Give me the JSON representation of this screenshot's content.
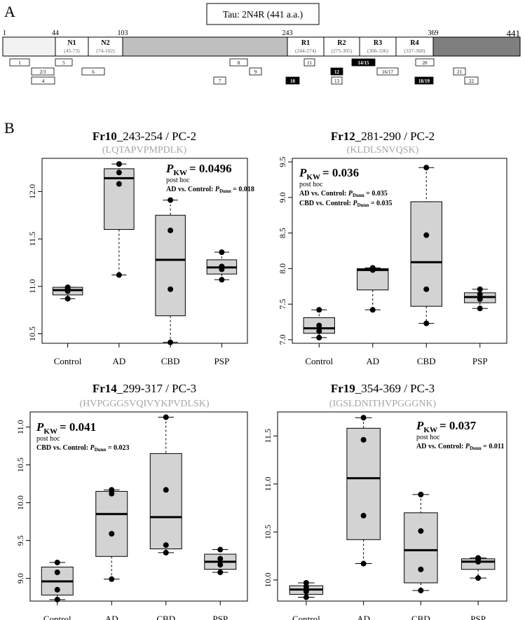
{
  "figure": {
    "panel_a_letter": "A",
    "panel_b_letter": "B"
  },
  "tau_map": {
    "title": "Tau: 2N4R (441 a.a.)",
    "boundary_labels": [
      "1",
      "44",
      "103",
      "243",
      "369",
      "441"
    ],
    "domains": [
      {
        "name": "N1",
        "range": "(45-73)"
      },
      {
        "name": "N2",
        "range": "(74-102)"
      },
      {
        "name": "R1",
        "range": "(244-274)"
      },
      {
        "name": "R2",
        "range": "(275-305)"
      },
      {
        "name": "R3",
        "range": "(306-336)"
      },
      {
        "name": "R4",
        "range": "(337-368)"
      }
    ],
    "fragments": [
      {
        "label": "1",
        "highlight": false
      },
      {
        "label": "2/3",
        "highlight": false
      },
      {
        "label": "4",
        "highlight": false
      },
      {
        "label": "5",
        "highlight": false
      },
      {
        "label": "6",
        "highlight": false
      },
      {
        "label": "7",
        "highlight": false
      },
      {
        "label": "8",
        "highlight": false
      },
      {
        "label": "9",
        "highlight": false
      },
      {
        "label": "10",
        "highlight": true
      },
      {
        "label": "11",
        "highlight": false
      },
      {
        "label": "12",
        "highlight": true
      },
      {
        "label": "13",
        "highlight": false
      },
      {
        "label": "14/15",
        "highlight": true
      },
      {
        "label": "16/17",
        "highlight": false
      },
      {
        "label": "18/19",
        "highlight": true
      },
      {
        "label": "20",
        "highlight": false
      },
      {
        "label": "21",
        "highlight": false
      },
      {
        "label": "22",
        "highlight": false
      }
    ],
    "colors": {
      "n_term": "#f2f2f2",
      "proline": "#bfbfbf",
      "c_term": "#7f7f7f",
      "highlight": "#000000"
    }
  },
  "chart_data": [
    {
      "type": "box",
      "title_bold": "Fr10",
      "title_rest": "_243-254 / PC-2",
      "sequence": "(LQTAPVPMPDLK)",
      "stat_label": "P",
      "stat_sub": "KW",
      "stat_value": "= 0.0496",
      "posthoc_header": "post hoc",
      "posthoc": [
        {
          "prefix": "AD vs. Control: ",
          "p": "P",
          "sub": "Dunn",
          "value": " = 0.018"
        }
      ],
      "categories": [
        "Control",
        "AD",
        "CBD",
        "PSP"
      ],
      "ylim": [
        10.4,
        12.35
      ],
      "yticks": [
        10.5,
        11.0,
        11.5,
        12.0
      ],
      "yticklabels": [
        "10.5",
        "11.0",
        "11.5",
        "12.0"
      ],
      "boxes": [
        {
          "whislo": 10.87,
          "q1": 10.91,
          "med": 10.96,
          "q3": 10.99,
          "whishi": 10.99
        },
        {
          "whislo": 11.12,
          "q1": 11.6,
          "med": 12.14,
          "q3": 12.24,
          "whishi": 12.29
        },
        {
          "whislo": 10.41,
          "q1": 10.69,
          "med": 11.28,
          "q3": 11.75,
          "whishi": 11.91
        },
        {
          "whislo": 11.07,
          "q1": 11.13,
          "med": 11.2,
          "q3": 11.28,
          "whishi": 11.36
        }
      ],
      "points": [
        [
          10.87,
          10.95,
          10.98,
          10.99
        ],
        [
          11.12,
          12.08,
          12.2,
          12.29
        ],
        [
          10.41,
          10.97,
          11.59,
          11.91
        ],
        [
          11.07,
          11.18,
          11.21,
          11.36
        ]
      ]
    },
    {
      "type": "box",
      "title_bold": "Fr12",
      "title_rest": "_281-290 / PC-2",
      "sequence": "(KLDLSNVQSK)",
      "stat_label": "P",
      "stat_sub": "KW",
      "stat_value": "= 0.036",
      "posthoc_header": "post hoc",
      "posthoc": [
        {
          "prefix": "AD vs. Control: ",
          "p": "P",
          "sub": "Dunn",
          "value": " = 0.035"
        },
        {
          "prefix": "CBD vs. Control: ",
          "p": "P",
          "sub": "Dunn",
          "value": " = 0.035"
        }
      ],
      "categories": [
        "Control",
        "AD",
        "CBD",
        "PSP"
      ],
      "ylim": [
        6.95,
        9.55
      ],
      "yticks": [
        7.0,
        7.5,
        8.0,
        8.5,
        9.0,
        9.5
      ],
      "yticklabels": [
        "7.0",
        "7.5",
        "8.0",
        "8.5",
        "9.0",
        "9.5"
      ],
      "boxes": [
        {
          "whislo": 7.03,
          "q1": 7.09,
          "med": 7.16,
          "q3": 7.31,
          "whishi": 7.42
        },
        {
          "whislo": 7.42,
          "q1": 7.7,
          "med": 7.98,
          "q3": 8.0,
          "whishi": 8.01
        },
        {
          "whislo": 7.23,
          "q1": 7.47,
          "med": 8.09,
          "q3": 8.94,
          "whishi": 9.42
        },
        {
          "whislo": 7.44,
          "q1": 7.52,
          "med": 7.6,
          "q3": 7.66,
          "whishi": 7.71
        }
      ],
      "points": [
        [
          7.03,
          7.12,
          7.2,
          7.42
        ],
        [
          7.42,
          7.98,
          7.99,
          8.01
        ],
        [
          7.23,
          7.71,
          8.47,
          9.42
        ],
        [
          7.44,
          7.57,
          7.64,
          7.71
        ]
      ]
    },
    {
      "type": "box",
      "title_bold": "Fr14",
      "title_rest": "_299-317 / PC-3",
      "sequence": "(HVPGGGSVQIVYKPVDLSK)",
      "stat_label": "P",
      "stat_sub": "KW",
      "stat_value": "= 0.041",
      "posthoc_header": "post hoc",
      "posthoc": [
        {
          "prefix": "CBD vs. Control: ",
          "p": "P",
          "sub": "Dunn",
          "value": " = 0.023"
        }
      ],
      "categories": [
        "Control",
        "AD",
        "CBD",
        "PSP"
      ],
      "ylim": [
        8.7,
        11.2
      ],
      "yticks": [
        9.0,
        9.5,
        10.0,
        10.5,
        11.0
      ],
      "yticklabels": [
        "9.0",
        "9.5",
        "10.0",
        "10.5",
        "11.0"
      ],
      "boxes": [
        {
          "whislo": 8.72,
          "q1": 8.78,
          "med": 8.96,
          "q3": 9.15,
          "whishi": 9.21
        },
        {
          "whislo": 8.99,
          "q1": 9.29,
          "med": 9.85,
          "q3": 10.15,
          "whishi": 10.17
        },
        {
          "whislo": 9.34,
          "q1": 9.39,
          "med": 9.81,
          "q3": 10.65,
          "whishi": 11.13
        },
        {
          "whislo": 9.08,
          "q1": 9.12,
          "med": 9.22,
          "q3": 9.32,
          "whishi": 9.38
        }
      ],
      "points": [
        [
          8.72,
          8.85,
          9.08,
          9.21
        ],
        [
          8.99,
          9.59,
          10.12,
          10.17
        ],
        [
          9.34,
          9.44,
          10.17,
          11.13
        ],
        [
          9.08,
          9.18,
          9.26,
          9.38
        ]
      ]
    },
    {
      "type": "box",
      "title_bold": "Fr19",
      "title_rest": "_354-369 / PC-3",
      "sequence": "(IGSLDNITHVPGGGNK)",
      "stat_label": "P",
      "stat_sub": "KW",
      "stat_value": "= 0.037",
      "posthoc_header": "post hoc",
      "posthoc": [
        {
          "prefix": "AD vs. Control: ",
          "p": "P",
          "sub": "Dunn",
          "value": " = 0.011"
        }
      ],
      "categories": [
        "Control",
        "AD",
        "CBD",
        "PSP"
      ],
      "ylim": [
        9.78,
        11.75
      ],
      "yticks": [
        10.0,
        10.5,
        11.0,
        11.5
      ],
      "yticklabels": [
        "10.0",
        "10.5",
        "11.0",
        "11.5"
      ],
      "boxes": [
        {
          "whislo": 9.82,
          "q1": 9.85,
          "med": 9.9,
          "q3": 9.94,
          "whishi": 9.97
        },
        {
          "whislo": 10.17,
          "q1": 10.42,
          "med": 11.06,
          "q3": 11.58,
          "whishi": 11.69
        },
        {
          "whislo": 9.89,
          "q1": 9.97,
          "med": 10.31,
          "q3": 10.7,
          "whishi": 10.89
        },
        {
          "whislo": 10.02,
          "q1": 10.11,
          "med": 10.19,
          "q3": 10.22,
          "whishi": 10.23
        }
      ],
      "points": [
        [
          9.82,
          9.88,
          9.93,
          9.97
        ],
        [
          10.17,
          10.67,
          11.46,
          11.69
        ],
        [
          9.89,
          10.11,
          10.51,
          10.89
        ],
        [
          10.02,
          10.19,
          10.21,
          10.23
        ]
      ]
    }
  ]
}
